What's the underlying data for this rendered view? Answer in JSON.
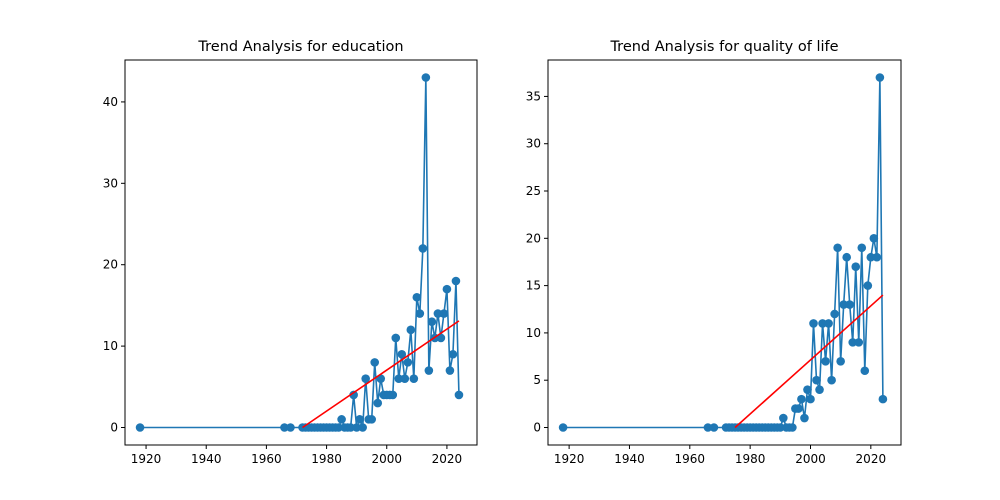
{
  "colors": {
    "series": "#1f77b4",
    "trend": "#ff0000",
    "axes": "#000000",
    "background": "#ffffff"
  },
  "chart_data": [
    {
      "type": "line",
      "title": "Trend Analysis for education",
      "xlabel": "",
      "ylabel": "",
      "xlim": [
        1913,
        2030
      ],
      "ylim": [
        -2.15,
        45.15
      ],
      "xticks": [
        1920,
        1940,
        1960,
        1980,
        2000,
        2020
      ],
      "yticks": [
        0,
        10,
        20,
        30,
        40
      ],
      "grid": false,
      "x": [
        1918,
        1966,
        1968,
        1972,
        1973,
        1974,
        1975,
        1976,
        1977,
        1978,
        1979,
        1980,
        1981,
        1982,
        1983,
        1984,
        1985,
        1986,
        1987,
        1988,
        1989,
        1990,
        1991,
        1992,
        1993,
        1994,
        1995,
        1996,
        1997,
        1998,
        1999,
        2000,
        2001,
        2002,
        2003,
        2004,
        2005,
        2006,
        2007,
        2008,
        2009,
        2010,
        2011,
        2012,
        2013,
        2014,
        2015,
        2016,
        2017,
        2018,
        2019,
        2020,
        2021,
        2022,
        2023,
        2024
      ],
      "y": [
        0,
        0,
        0,
        0,
        0,
        0,
        0,
        0,
        0,
        0,
        0,
        0,
        0,
        0,
        0,
        0,
        1,
        0,
        0,
        0,
        4,
        0,
        1,
        0,
        6,
        1,
        1,
        8,
        3,
        6,
        4,
        4,
        4,
        4,
        11,
        6,
        9,
        6,
        8,
        12,
        6,
        16,
        14,
        22,
        43,
        7,
        13,
        11,
        14,
        11,
        14,
        17,
        7,
        9,
        18,
        4
      ],
      "trend": {
        "x": [
          1972,
          2024
        ],
        "y": [
          0,
          13.1
        ]
      }
    },
    {
      "type": "line",
      "title": "Trend Analysis for quality of life",
      "xlabel": "",
      "ylabel": "",
      "xlim": [
        1913,
        2030
      ],
      "ylim": [
        -1.85,
        38.85
      ],
      "xticks": [
        1920,
        1940,
        1960,
        1980,
        2000,
        2020
      ],
      "yticks": [
        0,
        5,
        10,
        15,
        20,
        25,
        30,
        35
      ],
      "grid": false,
      "x": [
        1918,
        1966,
        1968,
        1972,
        1973,
        1974,
        1975,
        1976,
        1977,
        1978,
        1979,
        1980,
        1981,
        1982,
        1983,
        1984,
        1985,
        1986,
        1987,
        1988,
        1989,
        1990,
        1991,
        1992,
        1993,
        1994,
        1995,
        1996,
        1997,
        1998,
        1999,
        2000,
        2001,
        2002,
        2003,
        2004,
        2005,
        2006,
        2007,
        2008,
        2009,
        2010,
        2011,
        2012,
        2013,
        2014,
        2015,
        2016,
        2017,
        2018,
        2019,
        2020,
        2021,
        2022,
        2023,
        2024
      ],
      "y": [
        0,
        0,
        0,
        0,
        0,
        0,
        0,
        0,
        0,
        0,
        0,
        0,
        0,
        0,
        0,
        0,
        0,
        0,
        0,
        0,
        0,
        0,
        1,
        0,
        0,
        0,
        2,
        2,
        3,
        1,
        4,
        3,
        11,
        5,
        4,
        11,
        7,
        11,
        5,
        12,
        19,
        7,
        13,
        18,
        13,
        9,
        17,
        9,
        19,
        6,
        15,
        18,
        20,
        18,
        37,
        3
      ],
      "trend": {
        "x": [
          1975,
          2024
        ],
        "y": [
          0,
          14
        ]
      }
    }
  ]
}
